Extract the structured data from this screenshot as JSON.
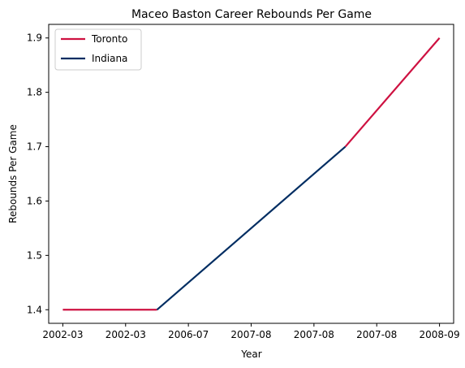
{
  "chart_data": {
    "type": "line",
    "title": "Maceo Baston Career Rebounds Per Game",
    "xlabel": "Year",
    "ylabel": "Rebounds Per Game",
    "x_tick_labels": [
      "2002-03",
      "2002-03",
      "2006-07",
      "2007-08",
      "2007-08",
      "2007-08",
      "2008-09"
    ],
    "y_ticks": [
      1.4,
      1.5,
      1.6,
      1.7,
      1.8,
      1.9
    ],
    "ylim": [
      1.375,
      1.925
    ],
    "xlim": [
      -0.15,
      4.15
    ],
    "grid": false,
    "legend_position": "top-left",
    "series": [
      {
        "name": "Toronto",
        "color": "#CE1141",
        "segments": [
          {
            "x": [
              0,
              1
            ],
            "y": [
              1.4,
              1.4
            ]
          },
          {
            "x": [
              3,
              4
            ],
            "y": [
              1.7,
              1.9
            ]
          }
        ]
      },
      {
        "name": "Indiana",
        "color": "#002D62",
        "segments": [
          {
            "x": [
              1,
              2,
              3
            ],
            "y": [
              1.4,
              1.55,
              1.7
            ]
          }
        ]
      }
    ]
  }
}
